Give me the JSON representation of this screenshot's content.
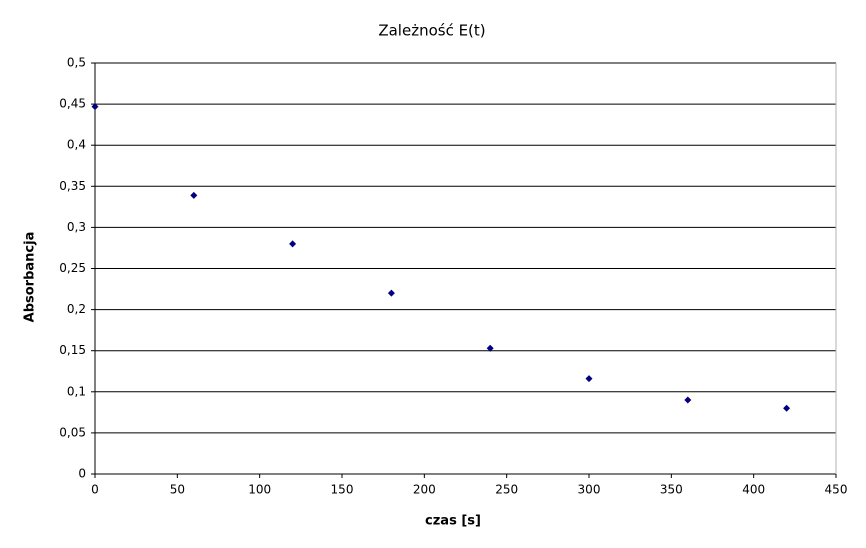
{
  "chart_data": {
    "type": "scatter",
    "title": "Zależność E(t)",
    "x_label": "czas [s]",
    "y_label": "Absorbancja",
    "series": [
      {
        "name": "E",
        "color": "#000080",
        "x": [
          0,
          60,
          120,
          180,
          240,
          300,
          360,
          420
        ],
        "values": [
          0.447,
          0.339,
          0.28,
          0.22,
          0.153,
          0.116,
          0.09,
          0.08
        ]
      }
    ],
    "xlim": [
      0,
      450
    ],
    "xticks": [
      0,
      50,
      100,
      150,
      200,
      250,
      300,
      350,
      400,
      450
    ],
    "ylim": [
      0,
      0.5
    ],
    "yticks": [
      0,
      {
        "value": 0.05,
        "label": "0,05"
      },
      {
        "value": 0.1,
        "label": "0,1"
      },
      {
        "value": 0.15,
        "label": "0,15"
      },
      {
        "value": 0.2,
        "label": "0,2"
      },
      {
        "value": 0.25,
        "label": "0,25"
      },
      {
        "value": 0.3,
        "label": "0,3"
      },
      {
        "value": 0.35,
        "label": "0,35"
      },
      {
        "value": 0.4,
        "label": "0,4"
      },
      {
        "value": 0.45,
        "label": "0,45"
      },
      {
        "value": 0.5,
        "label": "0,5"
      }
    ],
    "grid": true
  }
}
